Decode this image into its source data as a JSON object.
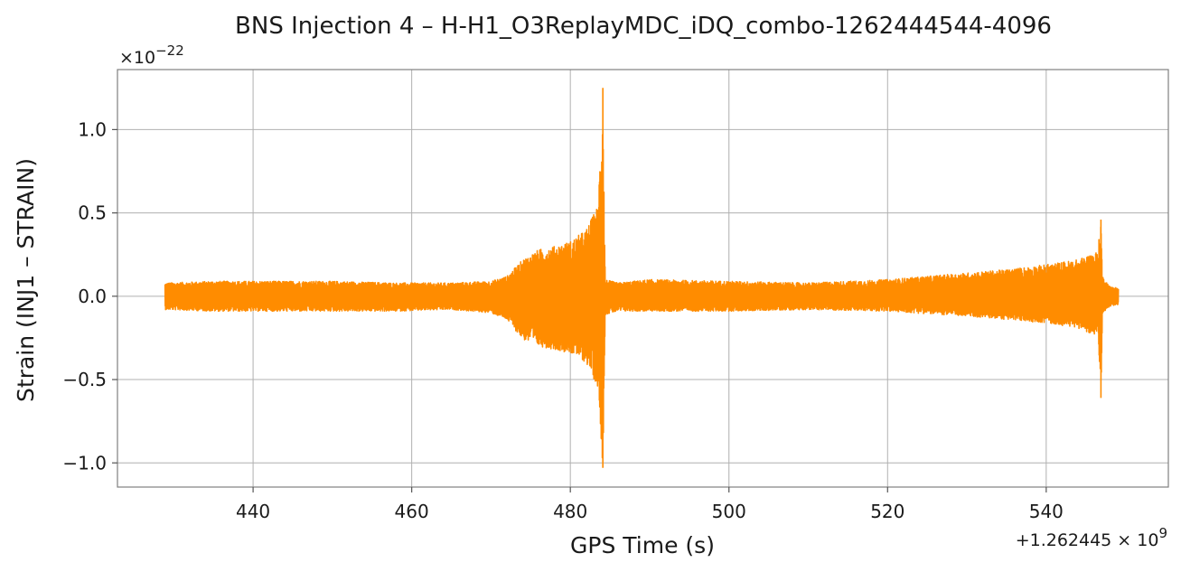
{
  "chart_data": {
    "type": "line",
    "title": "BNS Injection 4 – H-H1_O3ReplayMDC_iDQ_combo-1262444544-4096",
    "xlabel": "GPS Time (s)",
    "ylabel": "Strain (INJ1 – STRAIN)",
    "y_scale_label": "×10",
    "y_scale_exponent": "−22",
    "x_offset_label": "+1.262445 × 10",
    "x_offset_exponent": "9",
    "xlim": [
      422.9,
      555.4
    ],
    "ylim": [
      -1.145,
      1.36
    ],
    "x_ticks": [
      440,
      460,
      480,
      500,
      520,
      540
    ],
    "x_tick_labels": [
      "440",
      "460",
      "480",
      "500",
      "520",
      "540"
    ],
    "y_ticks": [
      1.0,
      0.5,
      0.0,
      -0.5,
      -1.0
    ],
    "y_tick_labels": [
      "1.0",
      "0.5",
      "0.0",
      "−0.5",
      "−1.0"
    ],
    "grid": true,
    "line_color": "#ff8c00",
    "series": [
      {
        "envelope_x": [
          428.9,
          435,
          442,
          450,
          458,
          465,
          470,
          472,
          474,
          476,
          478,
          480,
          482,
          483.5,
          484.1,
          484.4,
          486,
          490,
          500,
          510,
          520,
          530,
          535,
          540,
          544,
          546.5,
          546.9,
          547.1,
          548,
          549.1
        ],
        "envelope_upper": [
          0.08,
          0.09,
          0.09,
          0.09,
          0.08,
          0.08,
          0.09,
          0.12,
          0.22,
          0.28,
          0.3,
          0.33,
          0.4,
          0.55,
          1.25,
          0.1,
          0.08,
          0.1,
          0.09,
          0.08,
          0.1,
          0.14,
          0.16,
          0.19,
          0.22,
          0.27,
          0.46,
          0.12,
          0.06,
          0.05
        ],
        "envelope_lower": [
          -0.08,
          -0.09,
          -0.09,
          -0.09,
          -0.09,
          -0.08,
          -0.1,
          -0.14,
          -0.26,
          -0.3,
          -0.32,
          -0.34,
          -0.4,
          -0.55,
          -1.03,
          -0.11,
          -0.09,
          -0.09,
          -0.09,
          -0.08,
          -0.09,
          -0.12,
          -0.14,
          -0.16,
          -0.19,
          -0.24,
          -0.61,
          -0.1,
          -0.06,
          -0.05
        ]
      }
    ]
  }
}
